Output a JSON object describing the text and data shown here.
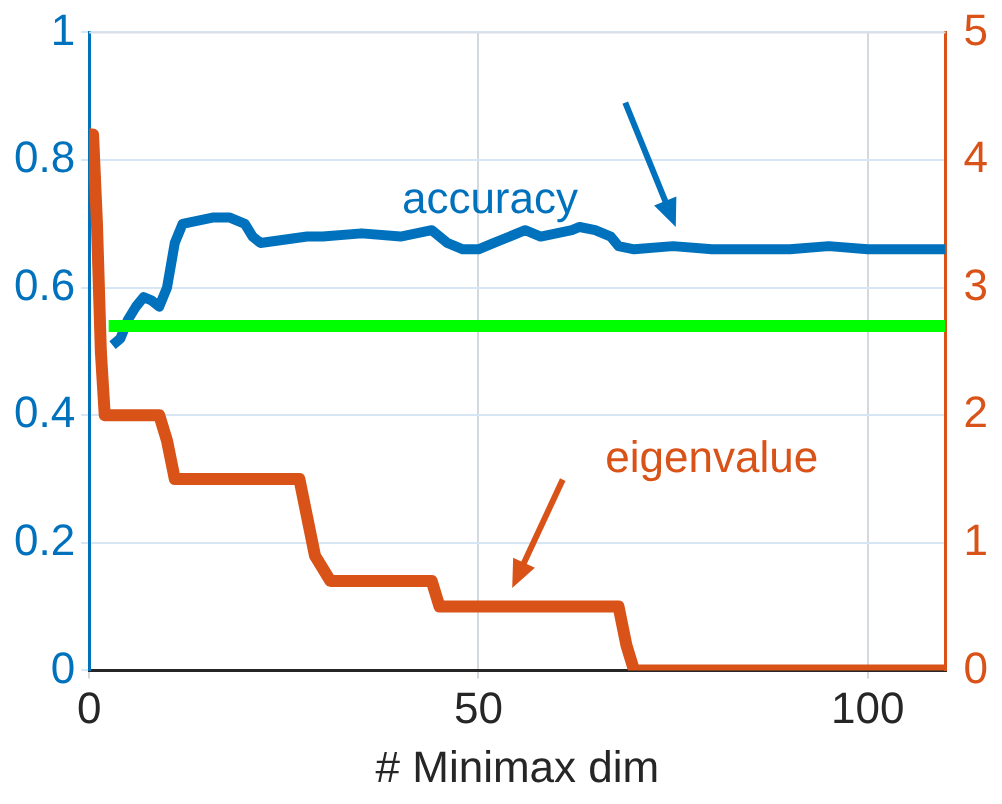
{
  "chart_data": {
    "type": "line",
    "xlabel": "# Minimax dim",
    "xlim": [
      0,
      110
    ],
    "xticks": [
      0,
      50,
      100
    ],
    "ylim": [
      0,
      1
    ],
    "yticks": [
      0,
      0.2,
      0.4,
      0.6,
      0.8,
      1
    ],
    "y2lim": [
      0,
      5
    ],
    "y2ticks": [
      0,
      1,
      2,
      3,
      4,
      5
    ],
    "grid": true,
    "legend": false,
    "marker": "none",
    "line_style": "solid",
    "series": [
      {
        "color": "#0072bd",
        "x": [
          3,
          4,
          5,
          6,
          7,
          8,
          9,
          10,
          11,
          12,
          14,
          16,
          18,
          20,
          21,
          22,
          25,
          28,
          30,
          35,
          40,
          44,
          46,
          48,
          50,
          52,
          54,
          56,
          58,
          60,
          62,
          63,
          65,
          67,
          68,
          70,
          75,
          80,
          85,
          90,
          95,
          100,
          105,
          110
        ],
        "values": [
          0.51,
          0.52,
          0.55,
          0.57,
          0.585,
          0.58,
          0.57,
          0.6,
          0.67,
          0.7,
          0.705,
          0.71,
          0.71,
          0.7,
          0.68,
          0.67,
          0.675,
          0.68,
          0.68,
          0.685,
          0.68,
          0.69,
          0.67,
          0.66,
          0.66,
          0.67,
          0.68,
          0.69,
          0.68,
          0.685,
          0.69,
          0.695,
          0.69,
          0.68,
          0.665,
          0.66,
          0.665,
          0.66,
          0.66,
          0.66,
          0.665,
          0.66,
          0.66,
          0.66
        ]
      },
      {
        "color": "#00ff00",
        "x": [
          2.5,
          110
        ],
        "values": [
          0.54,
          0.54
        ]
      },
      {
        "color": "#d95319",
        "axis": "y2",
        "x": [
          0,
          0.5,
          1,
          1.5,
          2,
          9,
          10,
          11,
          27,
          28,
          29,
          31,
          44,
          45,
          68,
          69,
          70,
          110
        ],
        "values": [
          4.2,
          4.2,
          3.5,
          2.5,
          2,
          2,
          1.8,
          1.5,
          1.5,
          1.2,
          0.9,
          0.7,
          0.7,
          0.5,
          0.5,
          0.2,
          0,
          0
        ]
      }
    ],
    "annotations": [
      "accuracy",
      "eigenvalue"
    ]
  }
}
